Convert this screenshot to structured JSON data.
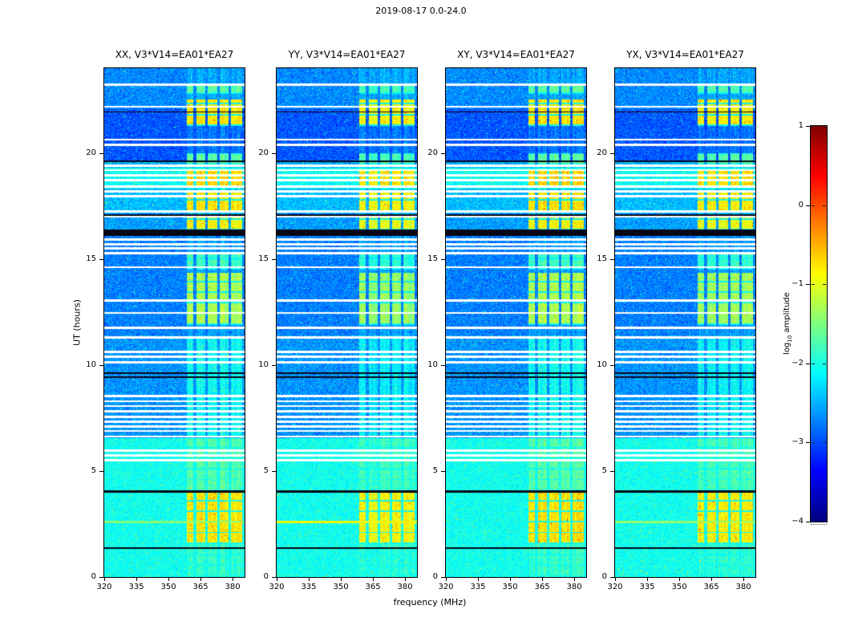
{
  "figure": {
    "title": "2019-08-17 0.0-24.0",
    "xlabel": "frequency (MHz)",
    "ylabel": "UT (hours)"
  },
  "axis_ticks": {
    "x_labels": [
      "320",
      "335",
      "350",
      "365",
      "380"
    ],
    "y_labels": [
      "0",
      "5",
      "10",
      "15",
      "20"
    ]
  },
  "colorbar": {
    "label_pre": "log",
    "label_sub": "10",
    "label_post": " amplitude",
    "tick_labels": [
      "1",
      "0",
      "−1",
      "−2",
      "−3",
      "−4"
    ]
  },
  "chart_data": {
    "type": "heatmap",
    "title": "2019-08-17 0.0-24.0",
    "xlabel": "frequency (MHz)",
    "ylabel": "UT (hours)",
    "x_range_mhz": [
      320,
      385.6
    ],
    "y_range_hours": [
      0,
      24
    ],
    "x_ticks": [
      320,
      335,
      350,
      365,
      380
    ],
    "y_ticks": [
      0,
      5,
      10,
      15,
      20
    ],
    "colormap": "jet",
    "color_scale_log10_amplitude": [
      -4,
      1
    ],
    "colorbar_ticks": [
      1,
      0,
      -1,
      -2,
      -3,
      -4
    ],
    "panels": [
      {
        "pol": "XX",
        "title": "XX, V3*V14=EA01*EA27"
      },
      {
        "pol": "YY",
        "title": "YY, V3*V14=EA01*EA27"
      },
      {
        "pol": "XY",
        "title": "XY, V3*V14=EA01*EA27"
      },
      {
        "pol": "YX",
        "title": "YX, V3*V14=EA01*EA27"
      }
    ],
    "panel_level_offsets": [
      0,
      -0.12,
      0.04,
      -0.02
    ],
    "background_regions": [
      {
        "t": [
          0,
          6.55
        ],
        "level": -2.05,
        "noise": 0.3
      },
      {
        "t": [
          6.55,
          11.4
        ],
        "level": -2.65,
        "noise": 0.42
      },
      {
        "t": [
          11.4,
          16.3
        ],
        "level": -2.75,
        "noise": 0.42
      },
      {
        "t": [
          16.3,
          17.2
        ],
        "level": -2.6,
        "noise": 0.42
      },
      {
        "t": [
          17.2,
          18.35
        ],
        "level": -2.45,
        "noise": 0.4
      },
      {
        "t": [
          18.35,
          19.3
        ],
        "level": -2.1,
        "noise": 0.35
      },
      {
        "t": [
          19.3,
          19.65
        ],
        "level": -2.5,
        "noise": 0.4
      },
      {
        "t": [
          19.65,
          22.1
        ],
        "level": -2.95,
        "noise": 0.42
      },
      {
        "t": [
          22.1,
          24.01
        ],
        "level": -2.7,
        "noise": 0.42
      }
    ],
    "rfi_band": {
      "f_range": [
        358.5,
        384.8
      ],
      "stripe_gaps_mhz": [
        [
          361.8,
          363.0
        ],
        [
          367.3,
          368.5
        ],
        [
          372.8,
          374.0
        ],
        [
          378.3,
          379.5
        ]
      ],
      "idle_level_boost": 0.15,
      "time_blocks": [
        {
          "t": [
            0.0,
            1.3
          ],
          "level": -1.9
        },
        {
          "t": [
            1.55,
            4.05
          ],
          "level": -0.8
        },
        {
          "t": [
            4.05,
            6.5
          ],
          "level": -1.75
        },
        {
          "t": [
            6.6,
            11.3
          ],
          "level": -2.1
        },
        {
          "t": [
            11.9,
            14.35
          ],
          "level": -1.3
        },
        {
          "t": [
            14.5,
            15.35
          ],
          "level": -1.85
        },
        {
          "t": [
            16.35,
            17.0
          ],
          "level": -0.9
        },
        {
          "t": [
            17.25,
            18.15
          ],
          "level": -0.8
        },
        {
          "t": [
            18.4,
            19.25
          ],
          "level": -0.7
        },
        {
          "t": [
            19.45,
            20.0
          ],
          "level": -1.7
        },
        {
          "t": [
            21.3,
            22.55
          ],
          "level": -0.8
        },
        {
          "t": [
            22.8,
            23.25
          ],
          "level": -1.7
        }
      ],
      "block_grid_period_hours": 0.5,
      "block_grid_gap_hours": 0.07
    },
    "white_lines_hours": [
      5.5,
      5.72,
      5.95,
      6.62,
      6.88,
      7.1,
      7.32,
      7.55,
      7.8,
      8.05,
      8.28,
      8.52,
      10.12,
      10.38,
      10.62,
      11.3,
      11.75,
      12.45,
      13.05,
      14.62,
      15.28,
      15.5,
      15.7,
      15.92,
      17.0,
      17.25,
      17.97,
      18.2,
      18.42,
      18.72,
      18.95,
      19.2,
      19.42,
      20.4,
      20.65,
      22.2,
      23.25
    ],
    "black_lines": [
      {
        "t": 1.35,
        "w": 0.09
      },
      {
        "t": 4.02,
        "w": 0.09
      },
      {
        "t": 9.42,
        "w": 0.09
      },
      {
        "t": 9.6,
        "w": 0.09
      },
      {
        "t": 16.25,
        "w": 0.3
      },
      {
        "t": 17.08,
        "w": 0.06
      },
      {
        "t": 19.62,
        "w": 0.07
      },
      {
        "t": 21.95,
        "w": 0.07
      }
    ],
    "bright_rows": [
      {
        "t": 2.58,
        "level_by_panel": [
          -1.5,
          -0.9,
          null,
          -1.4
        ]
      }
    ]
  }
}
